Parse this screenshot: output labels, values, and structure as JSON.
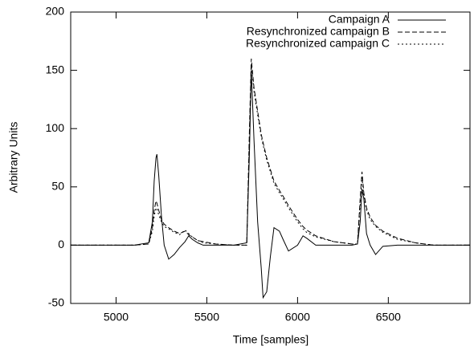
{
  "chart_data": {
    "type": "line",
    "x_label": "Time [samples]",
    "y_label": "Arbitrary Units",
    "x": [
      4750,
      4800,
      4900,
      5000,
      5100,
      5180,
      5200,
      5210,
      5220,
      5225,
      5235,
      5250,
      5265,
      5290,
      5320,
      5350,
      5380,
      5400,
      5420,
      5450,
      5480,
      5550,
      5650,
      5720,
      5735,
      5745,
      5760,
      5780,
      5800,
      5810,
      5830,
      5850,
      5870,
      5900,
      5920,
      5950,
      6000,
      6030,
      6050,
      6100,
      6200,
      6300,
      6330,
      6345,
      6355,
      6365,
      6380,
      6400,
      6430,
      6470,
      6550,
      6650,
      6750,
      6950
    ],
    "series": [
      {
        "name": "Campaign A",
        "color": "#000000",
        "style": "solid",
        "values": [
          0,
          0,
          0,
          0,
          0,
          2,
          20,
          55,
          75,
          78,
          60,
          25,
          0,
          -12,
          -8,
          -2,
          3,
          8,
          5,
          2,
          0,
          0,
          0,
          2,
          80,
          150,
          90,
          20,
          -20,
          -45,
          -40,
          -10,
          15,
          12,
          5,
          -5,
          0,
          8,
          6,
          0,
          0,
          0,
          1,
          20,
          48,
          40,
          10,
          0,
          -8,
          -1,
          0,
          0,
          0,
          0
        ]
      },
      {
        "name": "Resynchronized campaign B",
        "color": "#000000",
        "style": "dashed",
        "values": [
          0,
          0,
          0,
          0,
          0,
          1,
          15,
          30,
          38,
          36,
          30,
          22,
          18,
          15,
          12,
          10,
          12,
          9,
          7,
          4,
          3,
          1,
          0,
          0,
          100,
          160,
          135,
          115,
          95,
          88,
          75,
          65,
          55,
          47,
          42,
          34,
          22,
          16,
          13,
          8,
          3,
          1,
          1,
          40,
          63,
          45,
          32,
          24,
          17,
          12,
          6,
          2,
          0,
          0
        ]
      },
      {
        "name": "Resynchronized campaign C",
        "color": "#000000",
        "style": "dotted",
        "values": [
          0,
          0,
          0,
          0,
          0,
          1,
          12,
          25,
          32,
          31,
          26,
          20,
          16,
          14,
          11,
          9,
          13,
          10,
          7,
          4,
          2,
          1,
          0,
          0,
          95,
          155,
          132,
          112,
          93,
          86,
          73,
          63,
          53,
          45,
          40,
          32,
          20,
          14,
          11,
          7,
          3,
          1,
          1,
          35,
          58,
          42,
          30,
          22,
          16,
          11,
          5,
          2,
          0,
          0
        ]
      }
    ],
    "xlim": [
      4750,
      6950
    ],
    "xticks": [
      5000,
      5500,
      6000,
      6500
    ],
    "ylim": [
      -50,
      200
    ],
    "yticks": [
      -50,
      0,
      50,
      100,
      150,
      200
    ],
    "legend": "top-right",
    "grid": false
  }
}
